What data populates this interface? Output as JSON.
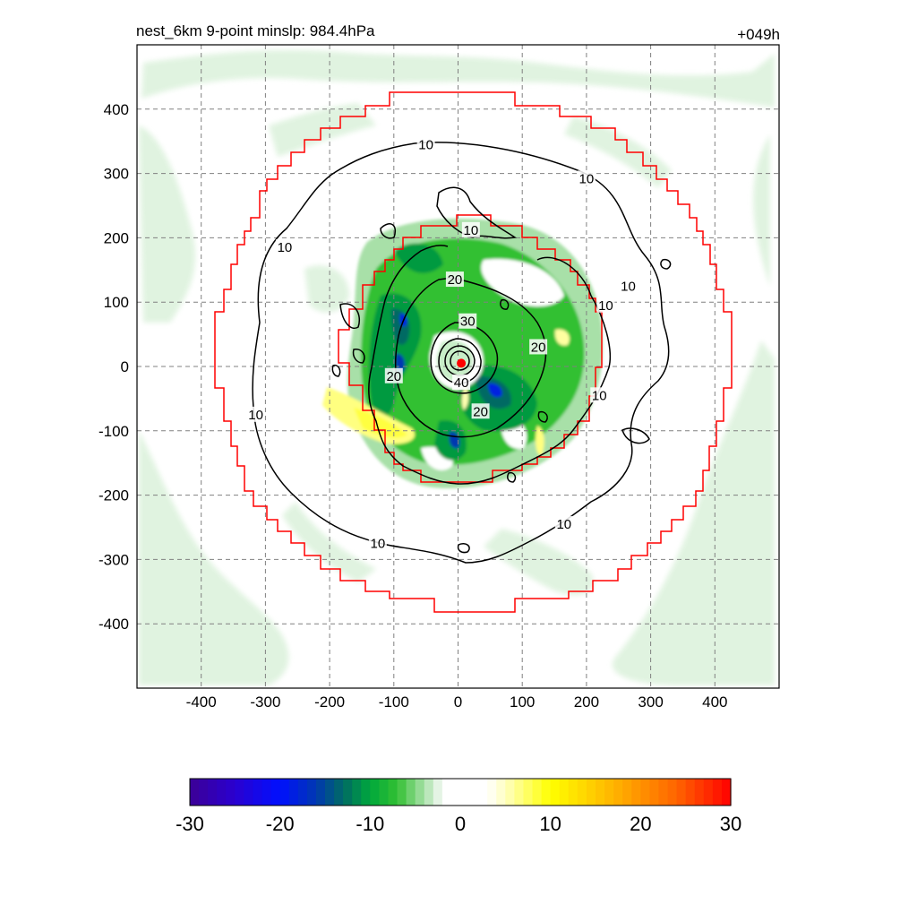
{
  "header": {
    "left_title": "nest_6km  9-point minslp: 984.4hPa",
    "right_title": "+049h"
  },
  "colors": {
    "positive_contour": "#000000",
    "inner_box": "#ff0000",
    "storm_center": "#ff0000",
    "grid": "#808080"
  },
  "chart_data": {
    "type": "heatmap",
    "xlim": [
      -500,
      500
    ],
    "ylim": [
      -500,
      500
    ],
    "grid": true,
    "x_ticks": [
      -400,
      -300,
      -200,
      -100,
      0,
      100,
      200,
      300,
      400
    ],
    "y_ticks": [
      400,
      300,
      200,
      100,
      0,
      -100,
      -200,
      -300,
      -400
    ],
    "storm_center": [
      5,
      5
    ],
    "contour_labels": [
      {
        "text": "10",
        "x": -50,
        "y": 345
      },
      {
        "text": "10",
        "x": 200,
        "y": 292
      },
      {
        "text": "10",
        "x": 20,
        "y": 212
      },
      {
        "text": "10",
        "x": -270,
        "y": 185
      },
      {
        "text": "10",
        "x": 265,
        "y": 125
      },
      {
        "text": "10",
        "x": 230,
        "y": 95
      },
      {
        "text": "20",
        "x": -5,
        "y": 135
      },
      {
        "text": "30",
        "x": 15,
        "y": 70
      },
      {
        "text": "20",
        "x": 125,
        "y": 30
      },
      {
        "text": "20",
        "x": -100,
        "y": -15
      },
      {
        "text": "40",
        "x": 5,
        "y": -25
      },
      {
        "text": "20",
        "x": 35,
        "y": -70
      },
      {
        "text": "10",
        "x": 220,
        "y": -45
      },
      {
        "text": "10",
        "x": -315,
        "y": -75
      },
      {
        "text": "10",
        "x": -125,
        "y": -275
      },
      {
        "text": "10",
        "x": 165,
        "y": -245
      }
    ],
    "colorbar": {
      "min": -30,
      "max": 30,
      "tick_labels": [
        "-30",
        "-20",
        "-10",
        "0",
        "10",
        "20",
        "30"
      ],
      "stops": [
        {
          "v": -30,
          "color": "#3c0096"
        },
        {
          "v": -25,
          "color": "#2a00d0"
        },
        {
          "v": -20,
          "color": "#0010ff"
        },
        {
          "v": -16,
          "color": "#0038b0"
        },
        {
          "v": -13,
          "color": "#006a64"
        },
        {
          "v": -10,
          "color": "#00a83c"
        },
        {
          "v": -7,
          "color": "#32c032"
        },
        {
          "v": -4,
          "color": "#a8e0a8"
        },
        {
          "v": -2.5,
          "color": "#e4f4e4"
        },
        {
          "v": -2,
          "color": "#ffffff"
        },
        {
          "v": 3,
          "color": "#ffffff"
        },
        {
          "v": 5,
          "color": "#ffffc0"
        },
        {
          "v": 10,
          "color": "#ffff00"
        },
        {
          "v": 17,
          "color": "#ffb400"
        },
        {
          "v": 24,
          "color": "#ff6400"
        },
        {
          "v": 30,
          "color": "#ff0000"
        }
      ]
    }
  }
}
